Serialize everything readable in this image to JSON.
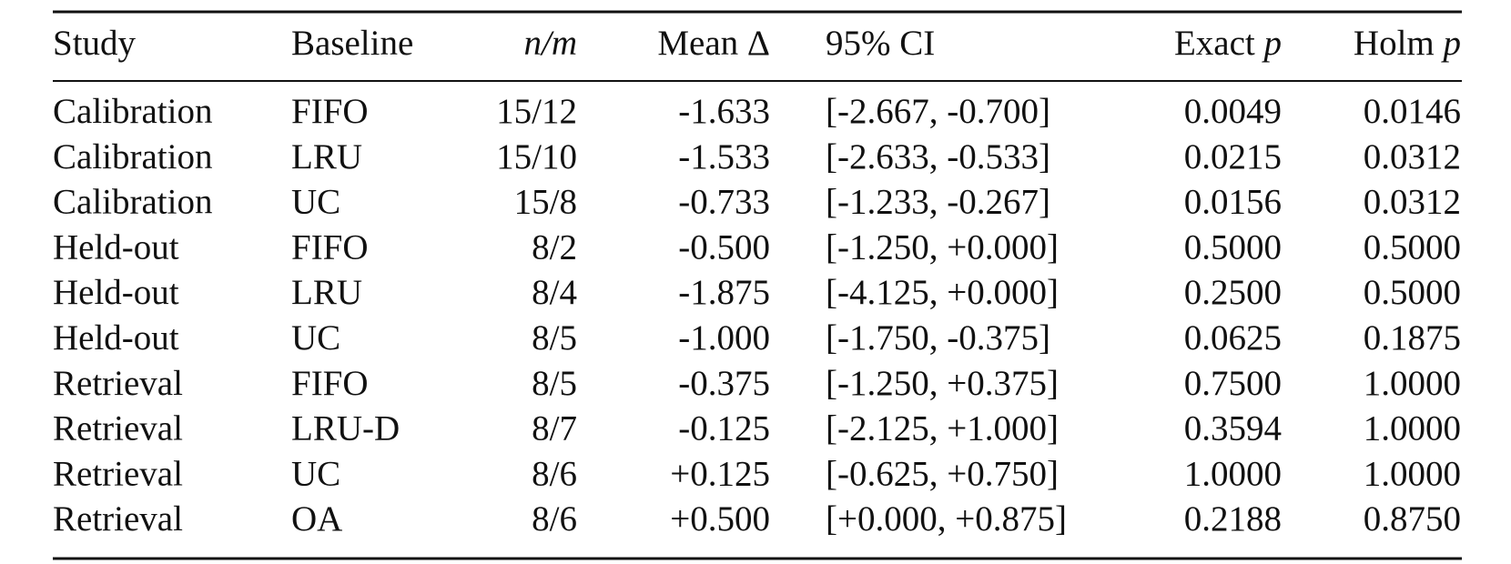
{
  "table": {
    "header": [
      [
        {
          "text": "Study"
        }
      ],
      [
        {
          "text": "Baseline"
        }
      ],
      [
        {
          "math": "n/m"
        }
      ],
      [
        {
          "text": "Mean Δ"
        }
      ],
      [
        {
          "text": "95% CI"
        }
      ],
      [
        {
          "text": "Exact "
        },
        {
          "math": "p"
        }
      ],
      [
        {
          "text": "Holm "
        },
        {
          "math": "p"
        }
      ]
    ],
    "rows": [
      [
        "Calibration",
        "FIFO",
        "15/12",
        "-1.633",
        "[-2.667, -0.700]",
        "0.0049",
        "0.0146"
      ],
      [
        "Calibration",
        "LRU",
        "15/10",
        "-1.533",
        "[-2.633, -0.533]",
        "0.0215",
        "0.0312"
      ],
      [
        "Calibration",
        "UC",
        "15/8",
        "-0.733",
        "[-1.233, -0.267]",
        "0.0156",
        "0.0312"
      ],
      [
        "Held-out",
        "FIFO",
        "8/2",
        "-0.500",
        "[-1.250, +0.000]",
        "0.5000",
        "0.5000"
      ],
      [
        "Held-out",
        "LRU",
        "8/4",
        "-1.875",
        "[-4.125, +0.000]",
        "0.2500",
        "0.5000"
      ],
      [
        "Held-out",
        "UC",
        "8/5",
        "-1.000",
        "[-1.750, -0.375]",
        "0.0625",
        "0.1875"
      ],
      [
        "Retrieval",
        "FIFO",
        "8/5",
        "-0.375",
        "[-1.250, +0.375]",
        "0.7500",
        "1.0000"
      ],
      [
        "Retrieval",
        "LRU-D",
        "8/7",
        "-0.125",
        "[-2.125, +1.000]",
        "0.3594",
        "1.0000"
      ],
      [
        "Retrieval",
        "UC",
        "8/6",
        "+0.125",
        "[-0.625, +0.750]",
        "1.0000",
        "1.0000"
      ],
      [
        "Retrieval",
        "OA",
        "8/6",
        "+0.500",
        "[+0.000, +0.875]",
        "0.2188",
        "0.8750"
      ]
    ]
  }
}
